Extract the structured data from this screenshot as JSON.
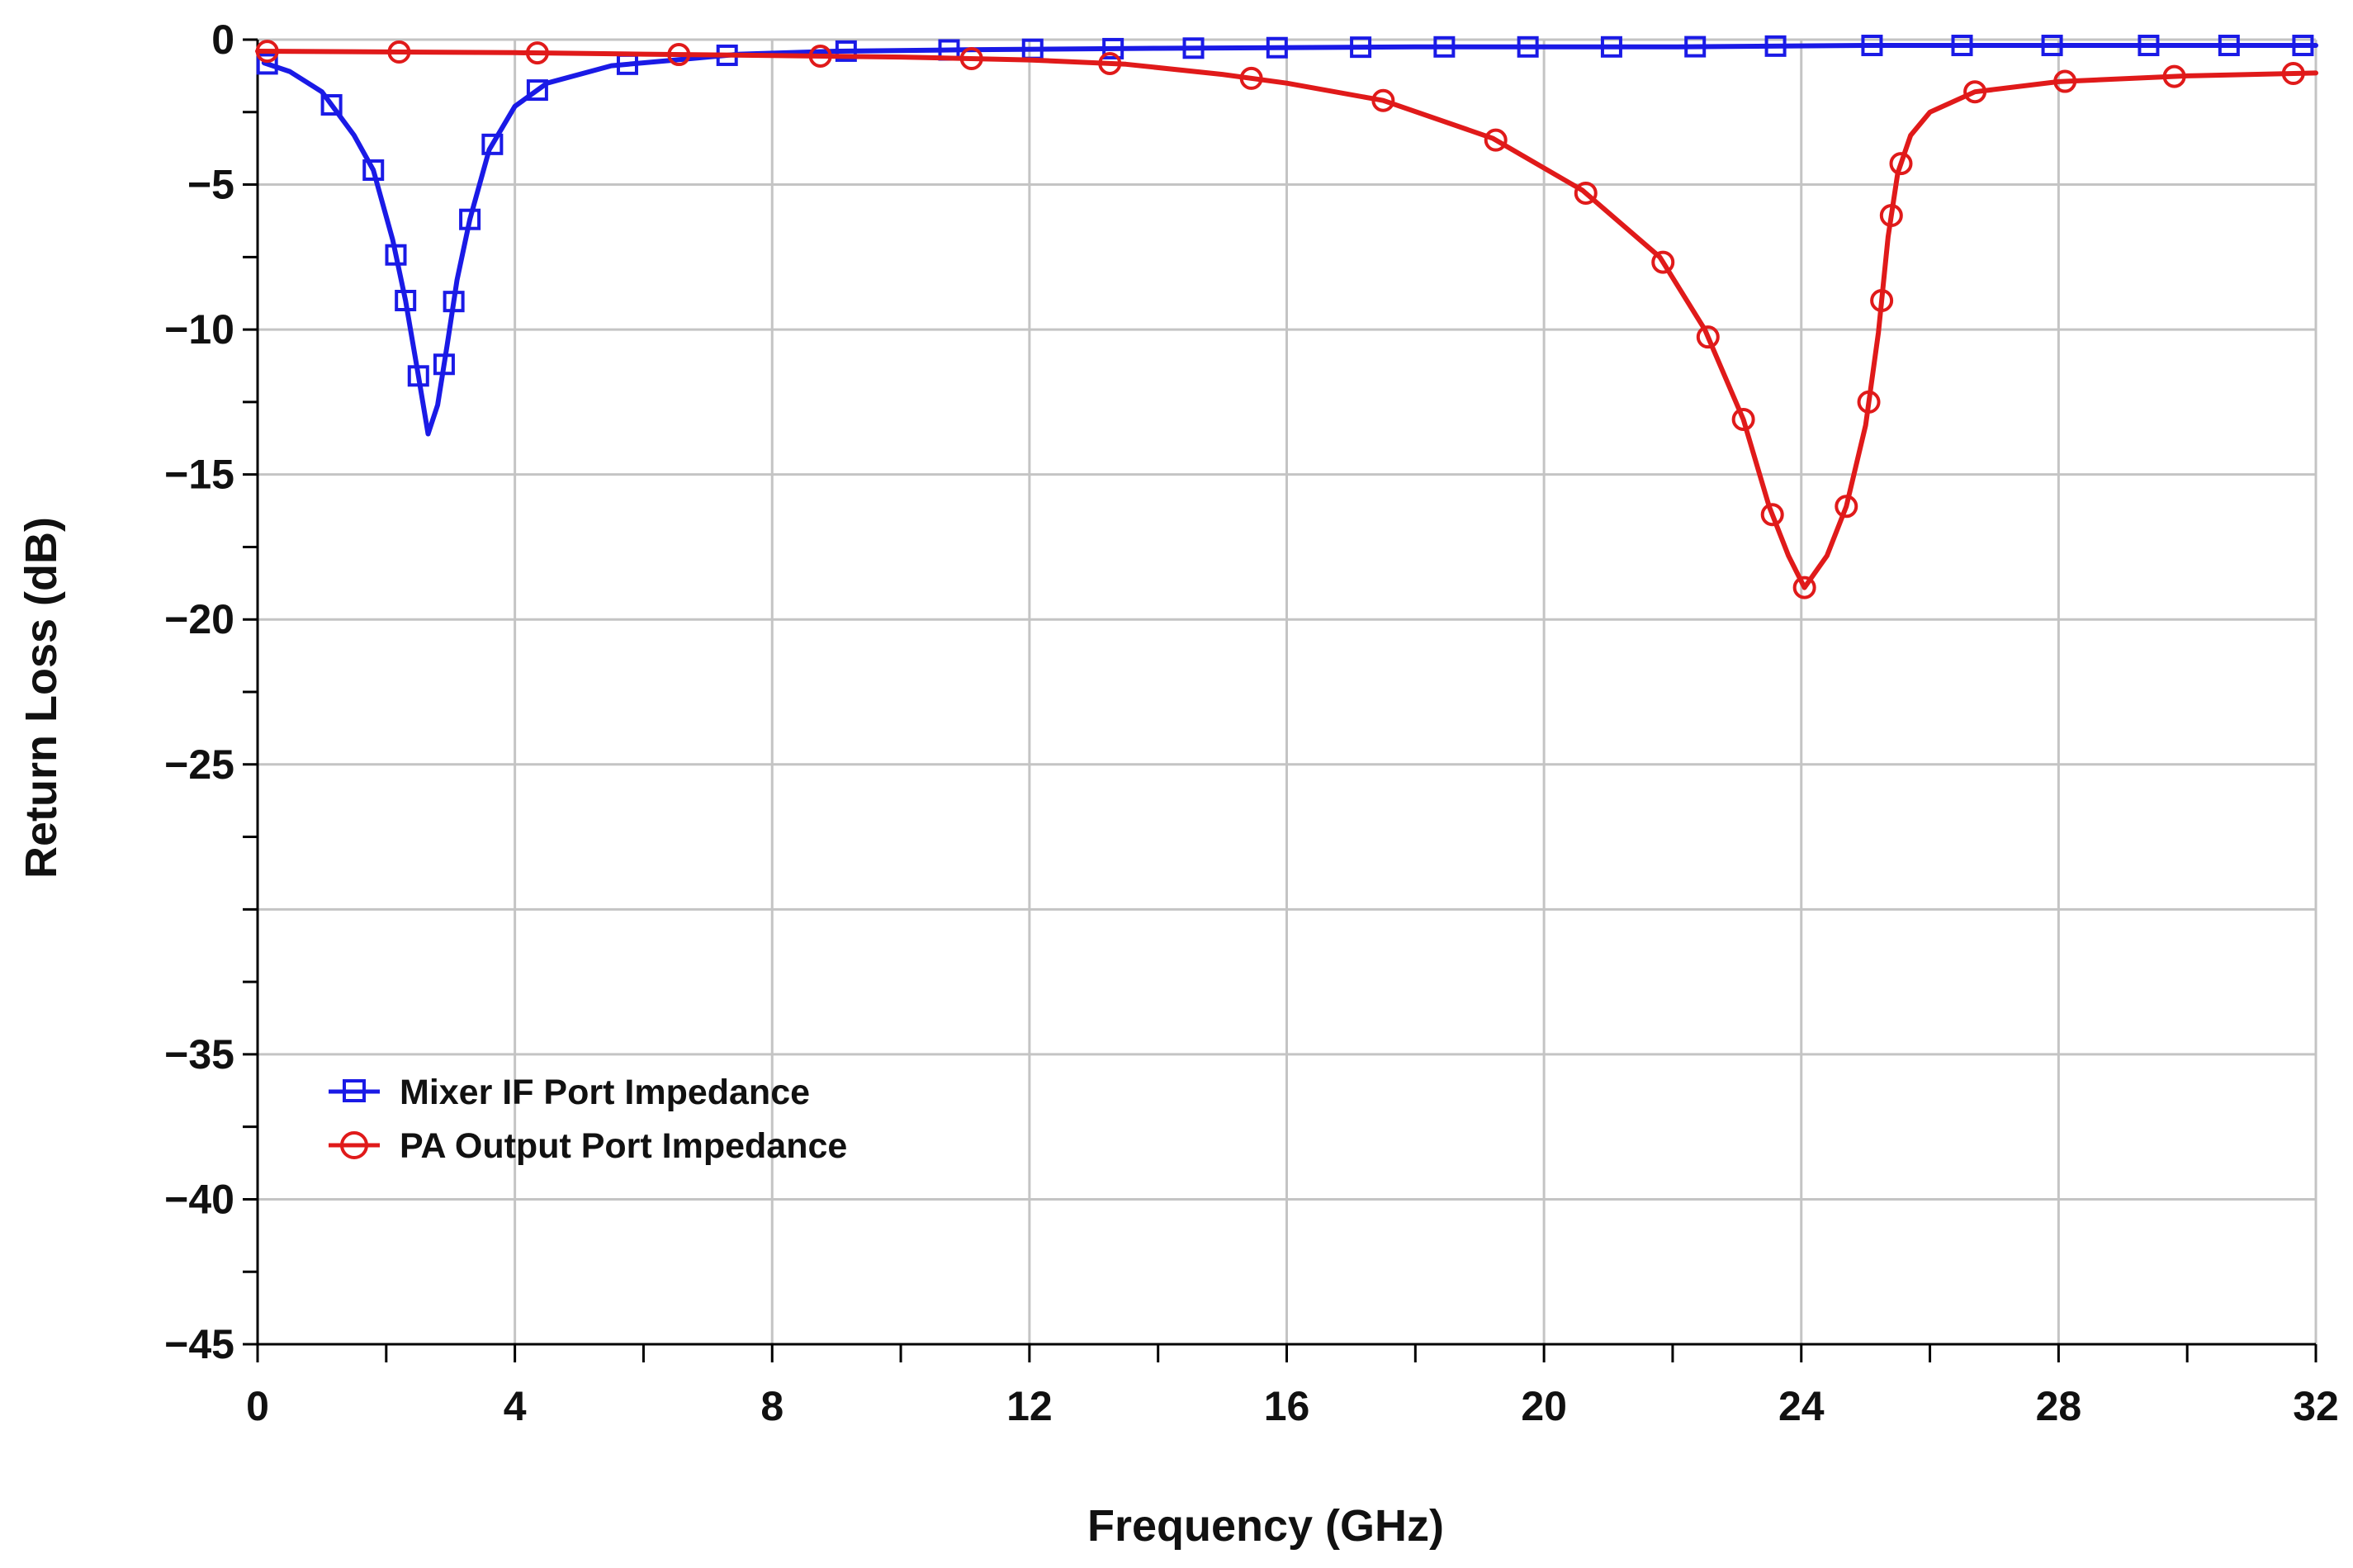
{
  "chart_data": {
    "type": "line",
    "title": "",
    "xlabel": "Frequency (GHz)",
    "ylabel": "Return Loss (dB)",
    "xlim": [
      0,
      32
    ],
    "ylim": [
      -45,
      0
    ],
    "x_ticks": [
      0,
      4,
      8,
      12,
      16,
      20,
      24,
      28,
      32
    ],
    "x_tick_labels": [
      "0",
      "4",
      "8",
      "12",
      "16",
      "20",
      "24",
      "28",
      "32"
    ],
    "y_ticks": [
      0,
      -5,
      -10,
      -15,
      -20,
      -25,
      -35,
      -40,
      -45
    ],
    "y_tick_labels": [
      "0",
      "−5",
      "−10",
      "−15",
      "−20",
      "−25",
      "−35",
      "−40",
      "−45"
    ],
    "grid": true,
    "legend_position": "lower-left",
    "series": [
      {
        "name": "Mixer IF Port Impedance",
        "color": "#1a1ae6",
        "marker": "square",
        "points": [
          [
            0.1,
            -0.8
          ],
          [
            0.5,
            -1.1
          ],
          [
            1.0,
            -1.8
          ],
          [
            1.5,
            -3.3
          ],
          [
            1.8,
            -4.5
          ],
          [
            2.1,
            -6.9
          ],
          [
            2.3,
            -9.0
          ],
          [
            2.5,
            -11.6
          ],
          [
            2.65,
            -13.6
          ],
          [
            2.8,
            -12.6
          ],
          [
            2.95,
            -10.5
          ],
          [
            3.1,
            -8.3
          ],
          [
            3.3,
            -6.2
          ],
          [
            3.6,
            -3.8
          ],
          [
            4.0,
            -2.3
          ],
          [
            4.5,
            -1.5
          ],
          [
            5.5,
            -0.9
          ],
          [
            6.5,
            -0.7
          ],
          [
            7.5,
            -0.5
          ],
          [
            9,
            -0.4
          ],
          [
            11,
            -0.35
          ],
          [
            14,
            -0.3
          ],
          [
            18,
            -0.25
          ],
          [
            22,
            -0.25
          ],
          [
            25,
            -0.2
          ],
          [
            28,
            -0.2
          ],
          [
            32,
            -0.2
          ]
        ],
        "marker_x": [
          0.15,
          1.15,
          1.8,
          2.15,
          2.3,
          2.5,
          2.9,
          3.05,
          3.3,
          3.65,
          4.35,
          5.75,
          7.3,
          9.15,
          10.75,
          12.05,
          13.3,
          14.55,
          15.85,
          17.15,
          18.45,
          19.75,
          21.05,
          22.35,
          23.6,
          25.1,
          26.5,
          27.9,
          29.4,
          30.65,
          31.8
        ]
      },
      {
        "name": "PA Output Port Impedance",
        "color": "#e01a1a",
        "marker": "circle",
        "points": [
          [
            0.0,
            -0.4
          ],
          [
            4,
            -0.45
          ],
          [
            6,
            -0.5
          ],
          [
            8,
            -0.55
          ],
          [
            10,
            -0.6
          ],
          [
            12,
            -0.7
          ],
          [
            13.5,
            -0.85
          ],
          [
            15,
            -1.2
          ],
          [
            16,
            -1.5
          ],
          [
            17.5,
            -2.1
          ],
          [
            19.2,
            -3.4
          ],
          [
            20.6,
            -5.2
          ],
          [
            21.8,
            -7.5
          ],
          [
            22.5,
            -10.0
          ],
          [
            23.1,
            -13.1
          ],
          [
            23.5,
            -16.1
          ],
          [
            23.8,
            -17.8
          ],
          [
            24.05,
            -18.9
          ],
          [
            24.4,
            -17.8
          ],
          [
            24.7,
            -16.1
          ],
          [
            25.0,
            -13.3
          ],
          [
            25.2,
            -10.1
          ],
          [
            25.35,
            -6.8
          ],
          [
            25.5,
            -4.6
          ],
          [
            25.7,
            -3.3
          ],
          [
            26.0,
            -2.5
          ],
          [
            26.7,
            -1.8
          ],
          [
            28.0,
            -1.45
          ],
          [
            30.0,
            -1.25
          ],
          [
            32.0,
            -1.15
          ]
        ],
        "marker_x": [
          0.15,
          2.2,
          4.35,
          6.55,
          8.75,
          11.1,
          13.25,
          15.45,
          17.5,
          19.25,
          20.65,
          21.85,
          22.55,
          23.1,
          23.55,
          24.05,
          24.7,
          25.05,
          25.25,
          25.4,
          25.55,
          26.7,
          28.1,
          29.8,
          31.65
        ]
      }
    ]
  }
}
